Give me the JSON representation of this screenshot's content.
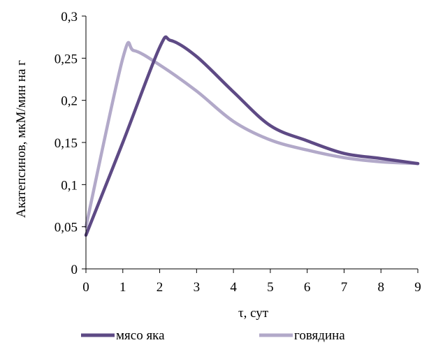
{
  "chart_data": {
    "type": "line",
    "title": "",
    "xlabel": "τ, сут",
    "ylabel": "Акатепсинов, мкМ/мин на г",
    "xlim": [
      0,
      9
    ],
    "ylim": [
      0,
      0.3
    ],
    "xticks": [
      {
        "value": 0,
        "label": "0"
      },
      {
        "value": 1,
        "label": "1"
      },
      {
        "value": 2,
        "label": "2"
      },
      {
        "value": 3,
        "label": "3"
      },
      {
        "value": 4,
        "label": "4"
      },
      {
        "value": 5,
        "label": "5"
      },
      {
        "value": 6,
        "label": "6"
      },
      {
        "value": 7,
        "label": "7"
      },
      {
        "value": 8,
        "label": "8"
      },
      {
        "value": 9,
        "label": "9"
      }
    ],
    "yticks": [
      {
        "value": 0,
        "label": "0"
      },
      {
        "value": 0.05,
        "label": "0,05"
      },
      {
        "value": 0.1,
        "label": "0,1"
      },
      {
        "value": 0.15,
        "label": "0,15"
      },
      {
        "value": 0.2,
        "label": "0,2"
      },
      {
        "value": 0.25,
        "label": "0,25"
      },
      {
        "value": 0.3,
        "label": "0,3"
      }
    ],
    "grid": false,
    "legend": "bottom",
    "series": [
      {
        "name": "мясо яка",
        "color": "#5e4a85",
        "x": [
          0,
          1,
          2,
          2.3,
          3,
          4,
          5,
          6,
          7,
          8,
          9
        ],
        "y": [
          0.04,
          0.15,
          0.263,
          0.271,
          0.252,
          0.21,
          0.17,
          0.152,
          0.137,
          0.131,
          0.125
        ]
      },
      {
        "name": "говядина",
        "color": "#b2a9c9",
        "x": [
          0,
          1,
          1.3,
          2,
          3,
          4,
          5,
          6,
          7,
          8,
          9
        ],
        "y": [
          0.05,
          0.25,
          0.259,
          0.242,
          0.211,
          0.175,
          0.153,
          0.141,
          0.132,
          0.127,
          0.125
        ]
      }
    ]
  }
}
